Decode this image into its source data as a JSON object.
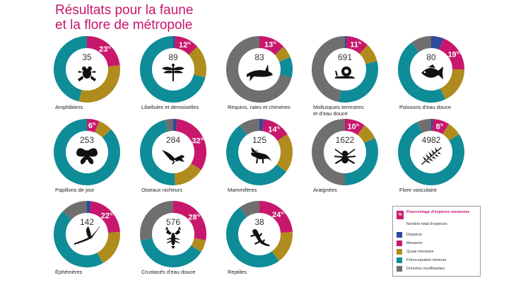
{
  "title": {
    "line1": "Résultats pour la faune",
    "line2": "et la flore de métropole"
  },
  "colors": {
    "disparue": "#2e4a9c",
    "menacee": "#c8176c",
    "quasi_menacee": "#b08c1e",
    "preoccupation_mineure": "#0e8c98",
    "donnees_insuffisantes": "#6f6f6f"
  },
  "legend": {
    "pct_symbol": "%",
    "pct_label": "Pourcentage d'espèces menacées",
    "total_label": "Nombre total d'espèces",
    "items": [
      {
        "key": "disparue",
        "label": "Disparue"
      },
      {
        "key": "menacee",
        "label": "Menacée"
      },
      {
        "key": "quasi_menacee",
        "label": "Quasi menacée"
      },
      {
        "key": "preoccupation_mineure",
        "label": "Préoccupation mineure"
      },
      {
        "key": "donnees_insuffisantes",
        "label": "Données insuffisantes"
      }
    ]
  },
  "chart_data": [
    {
      "type": "pie",
      "label": "Amphibiens",
      "total": "35",
      "threatened_pct": "23",
      "icon": "frog-icon",
      "values": {
        "disparue": 0,
        "menacee": 23,
        "quasi_menacee": 31,
        "preoccupation_mineure": 46,
        "donnees_insuffisantes": 0
      }
    },
    {
      "type": "pie",
      "label": "Libellules et demoiselles",
      "total": "89",
      "threatened_pct": "12",
      "icon": "dragonfly-icon",
      "values": {
        "disparue": 1,
        "menacee": 12,
        "quasi_menacee": 16,
        "preoccupation_mineure": 71,
        "donnees_insuffisantes": 0
      }
    },
    {
      "type": "pie",
      "label": "Requins, raies et chimères",
      "total": "83",
      "threatened_pct": "13",
      "icon": "shark-icon",
      "values": {
        "disparue": 0,
        "menacee": 13,
        "quasi_menacee": 6,
        "preoccupation_mineure": 10,
        "donnees_insuffisantes": 71
      }
    },
    {
      "type": "pie",
      "label": "Mollusques terrestres et d'eau douce",
      "total": "691",
      "threatened_pct": "11",
      "icon": "snail-icon",
      "values": {
        "disparue": 1,
        "menacee": 11,
        "quasi_menacee": 9,
        "preoccupation_mineure": 32,
        "donnees_insuffisantes": 47
      }
    },
    {
      "type": "pie",
      "label": "Poissons d'eau douce",
      "total": "80",
      "threatened_pct": "19",
      "icon": "fish-icon",
      "values": {
        "disparue": 6,
        "menacee": 19,
        "quasi_menacee": 18,
        "preoccupation_mineure": 47,
        "donnees_insuffisantes": 10
      }
    },
    {
      "type": "pie",
      "label": "Papillons de jour",
      "total": "253",
      "threatened_pct": "6",
      "icon": "butterfly-icon",
      "values": {
        "disparue": 0,
        "menacee": 6,
        "quasi_menacee": 7,
        "preoccupation_mineure": 87,
        "donnees_insuffisantes": 0
      }
    },
    {
      "type": "pie",
      "label": "Oiseaux nicheurs",
      "total": "284",
      "threatened_pct": "32",
      "icon": "bird-icon",
      "values": {
        "disparue": 2,
        "menacee": 32,
        "quasi_menacee": 15,
        "preoccupation_mineure": 47,
        "donnees_insuffisantes": 4
      }
    },
    {
      "type": "pie",
      "label": "Mammifères",
      "total": "125",
      "threatened_pct": "14",
      "icon": "fox-icon",
      "values": {
        "disparue": 2,
        "menacee": 14,
        "quasi_menacee": 19,
        "preoccupation_mineure": 55,
        "donnees_insuffisantes": 10
      }
    },
    {
      "type": "pie",
      "label": "Araignées",
      "total": "1622",
      "threatened_pct": "10",
      "icon": "spider-icon",
      "values": {
        "disparue": 0,
        "menacee": 10,
        "quasi_menacee": 8,
        "preoccupation_mineure": 32,
        "donnees_insuffisantes": 50
      }
    },
    {
      "type": "pie",
      "label": "Flore vasculaire",
      "total": "4982",
      "threatened_pct": "8",
      "icon": "fern-icon",
      "values": {
        "disparue": 1,
        "menacee": 8,
        "quasi_menacee": 7,
        "preoccupation_mineure": 77,
        "donnees_insuffisantes": 7
      }
    },
    {
      "type": "pie",
      "label": "Éphémères",
      "total": "142",
      "threatened_pct": "22",
      "icon": "mayfly-icon",
      "values": {
        "disparue": 2,
        "menacee": 22,
        "quasi_menacee": 18,
        "preoccupation_mineure": 45,
        "donnees_insuffisantes": 13
      }
    },
    {
      "type": "pie",
      "label": "Crustacés d'eau douce",
      "total": "576",
      "threatened_pct": "28",
      "icon": "crayfish-icon",
      "values": {
        "disparue": 0,
        "menacee": 28,
        "quasi_menacee": 6,
        "preoccupation_mineure": 38,
        "donnees_insuffisantes": 28
      }
    },
    {
      "type": "pie",
      "label": "Reptiles",
      "total": "38",
      "threatened_pct": "24",
      "icon": "lizard-icon",
      "values": {
        "disparue": 0,
        "menacee": 24,
        "quasi_menacee": 16,
        "preoccupation_mineure": 50,
        "donnees_insuffisantes": 10
      }
    }
  ]
}
